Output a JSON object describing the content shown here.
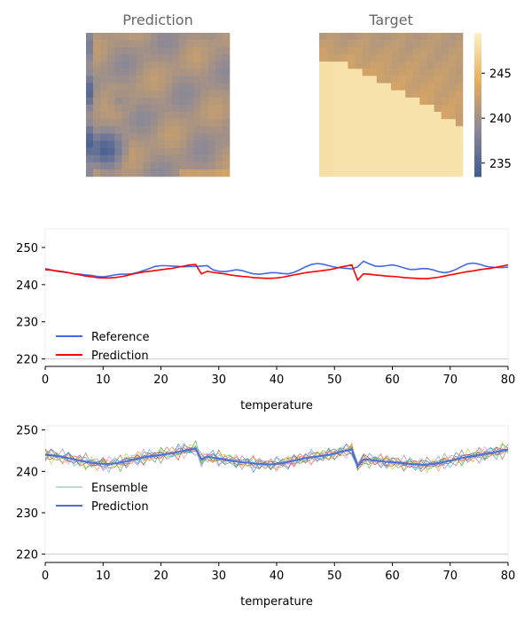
{
  "colors": {
    "reference": "#4169e1",
    "prediction": "#ff0000",
    "ensemble_mean": "#4d6fd6",
    "colormap": [
      "#3d5a93",
      "#8b8897",
      "#e8ac58",
      "#fbf0c0"
    ]
  },
  "chart_data": [
    {
      "type": "heatmap",
      "title": "Prediction",
      "grid": [
        20,
        20
      ],
      "vrange": [
        233.5,
        249.5
      ],
      "description_free": true
    },
    {
      "type": "heatmap",
      "title": "Target",
      "grid": [
        20,
        20
      ],
      "vrange": [
        233.5,
        249.5
      ],
      "colorbar": {
        "ticks": [
          235,
          240,
          245
        ],
        "range": [
          233.5,
          249.5
        ]
      }
    },
    {
      "type": "line",
      "xlabel": "temperature",
      "xlim": [
        0,
        80
      ],
      "ylim": [
        218,
        255
      ],
      "xticks": [
        0,
        10,
        20,
        30,
        40,
        50,
        60,
        70,
        80
      ],
      "yticks": [
        220,
        230,
        240,
        250
      ],
      "legend": "lower-left",
      "hline": 220,
      "series": [
        {
          "name": "Reference",
          "x": [
            0,
            1,
            2,
            3,
            4,
            5,
            6,
            7,
            8,
            9,
            10,
            11,
            12,
            13,
            14,
            15,
            16,
            17,
            18,
            19,
            20,
            21,
            22,
            23,
            24,
            25,
            26,
            27,
            28,
            29,
            30,
            31,
            32,
            33,
            34,
            35,
            36,
            37,
            38,
            39,
            40,
            41,
            42,
            43,
            44,
            45,
            46,
            47,
            48,
            49,
            50,
            51,
            52,
            53,
            54,
            55,
            56,
            57,
            58,
            59,
            60,
            61,
            62,
            63,
            64,
            65,
            66,
            67,
            68,
            69,
            70,
            71,
            72,
            73,
            74,
            75,
            76,
            77,
            78,
            79,
            80
          ],
          "y": [
            244.3,
            244.0,
            243.6,
            243.4,
            243.2,
            242.9,
            242.8,
            242.6,
            242.5,
            242.2,
            242.1,
            242.3,
            242.6,
            242.8,
            242.8,
            242.9,
            243.3,
            243.8,
            244.3,
            244.9,
            245.1,
            245.1,
            245.0,
            244.9,
            244.8,
            244.9,
            244.9,
            245.0,
            245.1,
            244.0,
            243.6,
            243.5,
            243.7,
            244.0,
            243.8,
            243.3,
            242.9,
            242.8,
            243.0,
            243.2,
            243.2,
            243.0,
            242.9,
            243.3,
            244.0,
            244.8,
            245.4,
            245.7,
            245.5,
            245.1,
            244.7,
            244.5,
            244.4,
            244.2,
            244.8,
            246.3,
            245.6,
            245.0,
            244.9,
            245.1,
            245.3,
            245.0,
            244.5,
            244.1,
            244.1,
            244.3,
            244.3,
            244.0,
            243.5,
            243.2,
            243.5,
            244.1,
            244.9,
            245.6,
            245.8,
            245.5,
            245.0,
            244.7,
            244.6,
            244.6,
            244.7
          ]
        },
        {
          "name": "Prediction",
          "x": [
            0,
            1,
            2,
            3,
            4,
            5,
            6,
            7,
            8,
            9,
            10,
            11,
            12,
            13,
            14,
            15,
            16,
            17,
            18,
            19,
            20,
            21,
            22,
            23,
            24,
            25,
            26,
            27,
            28,
            29,
            30,
            31,
            32,
            33,
            34,
            35,
            36,
            37,
            38,
            39,
            40,
            41,
            42,
            43,
            44,
            45,
            46,
            47,
            48,
            49,
            50,
            51,
            52,
            53,
            54,
            55,
            56,
            57,
            58,
            59,
            60,
            61,
            62,
            63,
            64,
            65,
            66,
            67,
            68,
            69,
            70,
            71,
            72,
            73,
            74,
            75,
            76,
            77,
            78,
            79,
            80
          ],
          "y": [
            244.0,
            243.9,
            243.7,
            243.5,
            243.2,
            242.9,
            242.6,
            242.3,
            242.1,
            241.9,
            241.8,
            241.8,
            241.9,
            242.1,
            242.4,
            242.8,
            243.1,
            243.4,
            243.6,
            243.8,
            244.0,
            244.2,
            244.4,
            244.7,
            245.0,
            245.3,
            245.4,
            242.9,
            243.6,
            243.3,
            243.1,
            242.9,
            242.6,
            242.4,
            242.2,
            242.1,
            241.9,
            241.8,
            241.7,
            241.7,
            241.8,
            242.0,
            242.3,
            242.6,
            242.9,
            243.2,
            243.4,
            243.6,
            243.8,
            244.0,
            244.3,
            244.7,
            245.0,
            245.3,
            241.2,
            242.9,
            242.8,
            242.6,
            242.5,
            242.3,
            242.2,
            242.1,
            241.9,
            241.8,
            241.7,
            241.6,
            241.6,
            241.8,
            242.0,
            242.3,
            242.6,
            242.9,
            243.2,
            243.5,
            243.7,
            244.0,
            244.2,
            244.4,
            244.7,
            245.0,
            245.3
          ]
        }
      ]
    },
    {
      "type": "line",
      "xlabel": "temperature",
      "xlim": [
        0,
        80
      ],
      "ylim": [
        218,
        251
      ],
      "xticks": [
        0,
        10,
        20,
        30,
        40,
        50,
        60,
        70,
        80
      ],
      "yticks": [
        220,
        230,
        240,
        250
      ],
      "legend": "lower-left",
      "hline": 220,
      "series": [
        {
          "name": "Ensemble"
        },
        {
          "name": "Prediction",
          "x": [
            0,
            1,
            2,
            3,
            4,
            5,
            6,
            7,
            8,
            9,
            10,
            11,
            12,
            13,
            14,
            15,
            16,
            17,
            18,
            19,
            20,
            21,
            22,
            23,
            24,
            25,
            26,
            27,
            28,
            29,
            30,
            31,
            32,
            33,
            34,
            35,
            36,
            37,
            38,
            39,
            40,
            41,
            42,
            43,
            44,
            45,
            46,
            47,
            48,
            49,
            50,
            51,
            52,
            53,
            54,
            55,
            56,
            57,
            58,
            59,
            60,
            61,
            62,
            63,
            64,
            65,
            66,
            67,
            68,
            69,
            70,
            71,
            72,
            73,
            74,
            75,
            76,
            77,
            78,
            79,
            80
          ],
          "y": [
            244.0,
            243.9,
            243.7,
            243.5,
            243.2,
            242.9,
            242.6,
            242.3,
            242.1,
            241.9,
            241.8,
            241.8,
            241.9,
            242.1,
            242.4,
            242.8,
            243.1,
            243.4,
            243.6,
            243.8,
            244.0,
            244.2,
            244.4,
            244.7,
            245.0,
            245.3,
            245.4,
            242.9,
            243.6,
            243.3,
            243.1,
            242.9,
            242.6,
            242.4,
            242.2,
            242.1,
            241.9,
            241.8,
            241.7,
            241.7,
            241.8,
            242.0,
            242.3,
            242.6,
            242.9,
            243.2,
            243.4,
            243.6,
            243.8,
            244.0,
            244.3,
            244.7,
            245.0,
            245.3,
            241.2,
            242.9,
            242.8,
            242.6,
            242.5,
            242.3,
            242.2,
            242.1,
            241.9,
            241.8,
            241.7,
            241.6,
            241.6,
            241.8,
            242.0,
            242.3,
            242.6,
            242.9,
            243.2,
            243.5,
            243.7,
            244.0,
            244.2,
            244.4,
            244.7,
            245.0,
            245.3
          ]
        }
      ],
      "ensemble_colors": [
        "#1f77b4",
        "#ff7f0e",
        "#2ca02c",
        "#d62728",
        "#9467bd",
        "#8c564b",
        "#e377c2",
        "#7f7f7f",
        "#bcbd22",
        "#17becf"
      ]
    }
  ]
}
